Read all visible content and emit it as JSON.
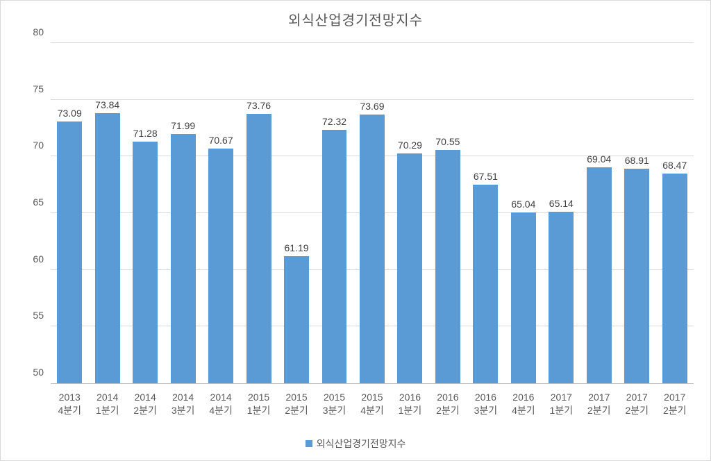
{
  "chart": {
    "type": "bar",
    "title": "외식산업경기전망지수",
    "title_fontsize": 20,
    "title_color": "#595959",
    "background_color": "#ffffff",
    "plot_border_color": "#d9d9d9",
    "grid_color": "#d9d9d9",
    "axis_line_color": "#bfbfbf",
    "font_family": "Malgun Gothic",
    "tick_label_color": "#595959",
    "tick_label_fontsize": 14,
    "value_label_color": "#404040",
    "value_label_fontsize": 14,
    "y": {
      "min": 50,
      "max": 80,
      "step": 5,
      "ticks": [
        50,
        55,
        60,
        65,
        70,
        75,
        80
      ]
    },
    "bar_color": "#5b9bd5",
    "bar_width_ratio": 0.66,
    "categories": [
      {
        "line1": "2013",
        "line2": "4분기"
      },
      {
        "line1": "2014",
        "line2": "1분기"
      },
      {
        "line1": "2014",
        "line2": "2분기"
      },
      {
        "line1": "2014",
        "line2": "3분기"
      },
      {
        "line1": "2014",
        "line2": "4분기"
      },
      {
        "line1": "2015",
        "line2": "1분기"
      },
      {
        "line1": "2015",
        "line2": "2분기"
      },
      {
        "line1": "2015",
        "line2": "3분기"
      },
      {
        "line1": "2015",
        "line2": "4분기"
      },
      {
        "line1": "2016",
        "line2": "1분기"
      },
      {
        "line1": "2016",
        "line2": "2분기"
      },
      {
        "line1": "2016",
        "line2": "3분기"
      },
      {
        "line1": "2016",
        "line2": "4분기"
      },
      {
        "line1": "2017",
        "line2": "1분기"
      },
      {
        "line1": "2017",
        "line2": "2분기"
      },
      {
        "line1": "2017",
        "line2": "2분기"
      },
      {
        "line1": "2017",
        "line2": "2분기"
      }
    ],
    "values": [
      73.09,
      73.84,
      71.28,
      71.99,
      70.67,
      73.76,
      61.19,
      72.32,
      73.69,
      70.29,
      70.55,
      67.51,
      65.04,
      65.14,
      69.04,
      68.91,
      68.47
    ],
    "legend": {
      "label": "외식산업경기전망지수",
      "swatch_color": "#5b9bd5"
    }
  }
}
